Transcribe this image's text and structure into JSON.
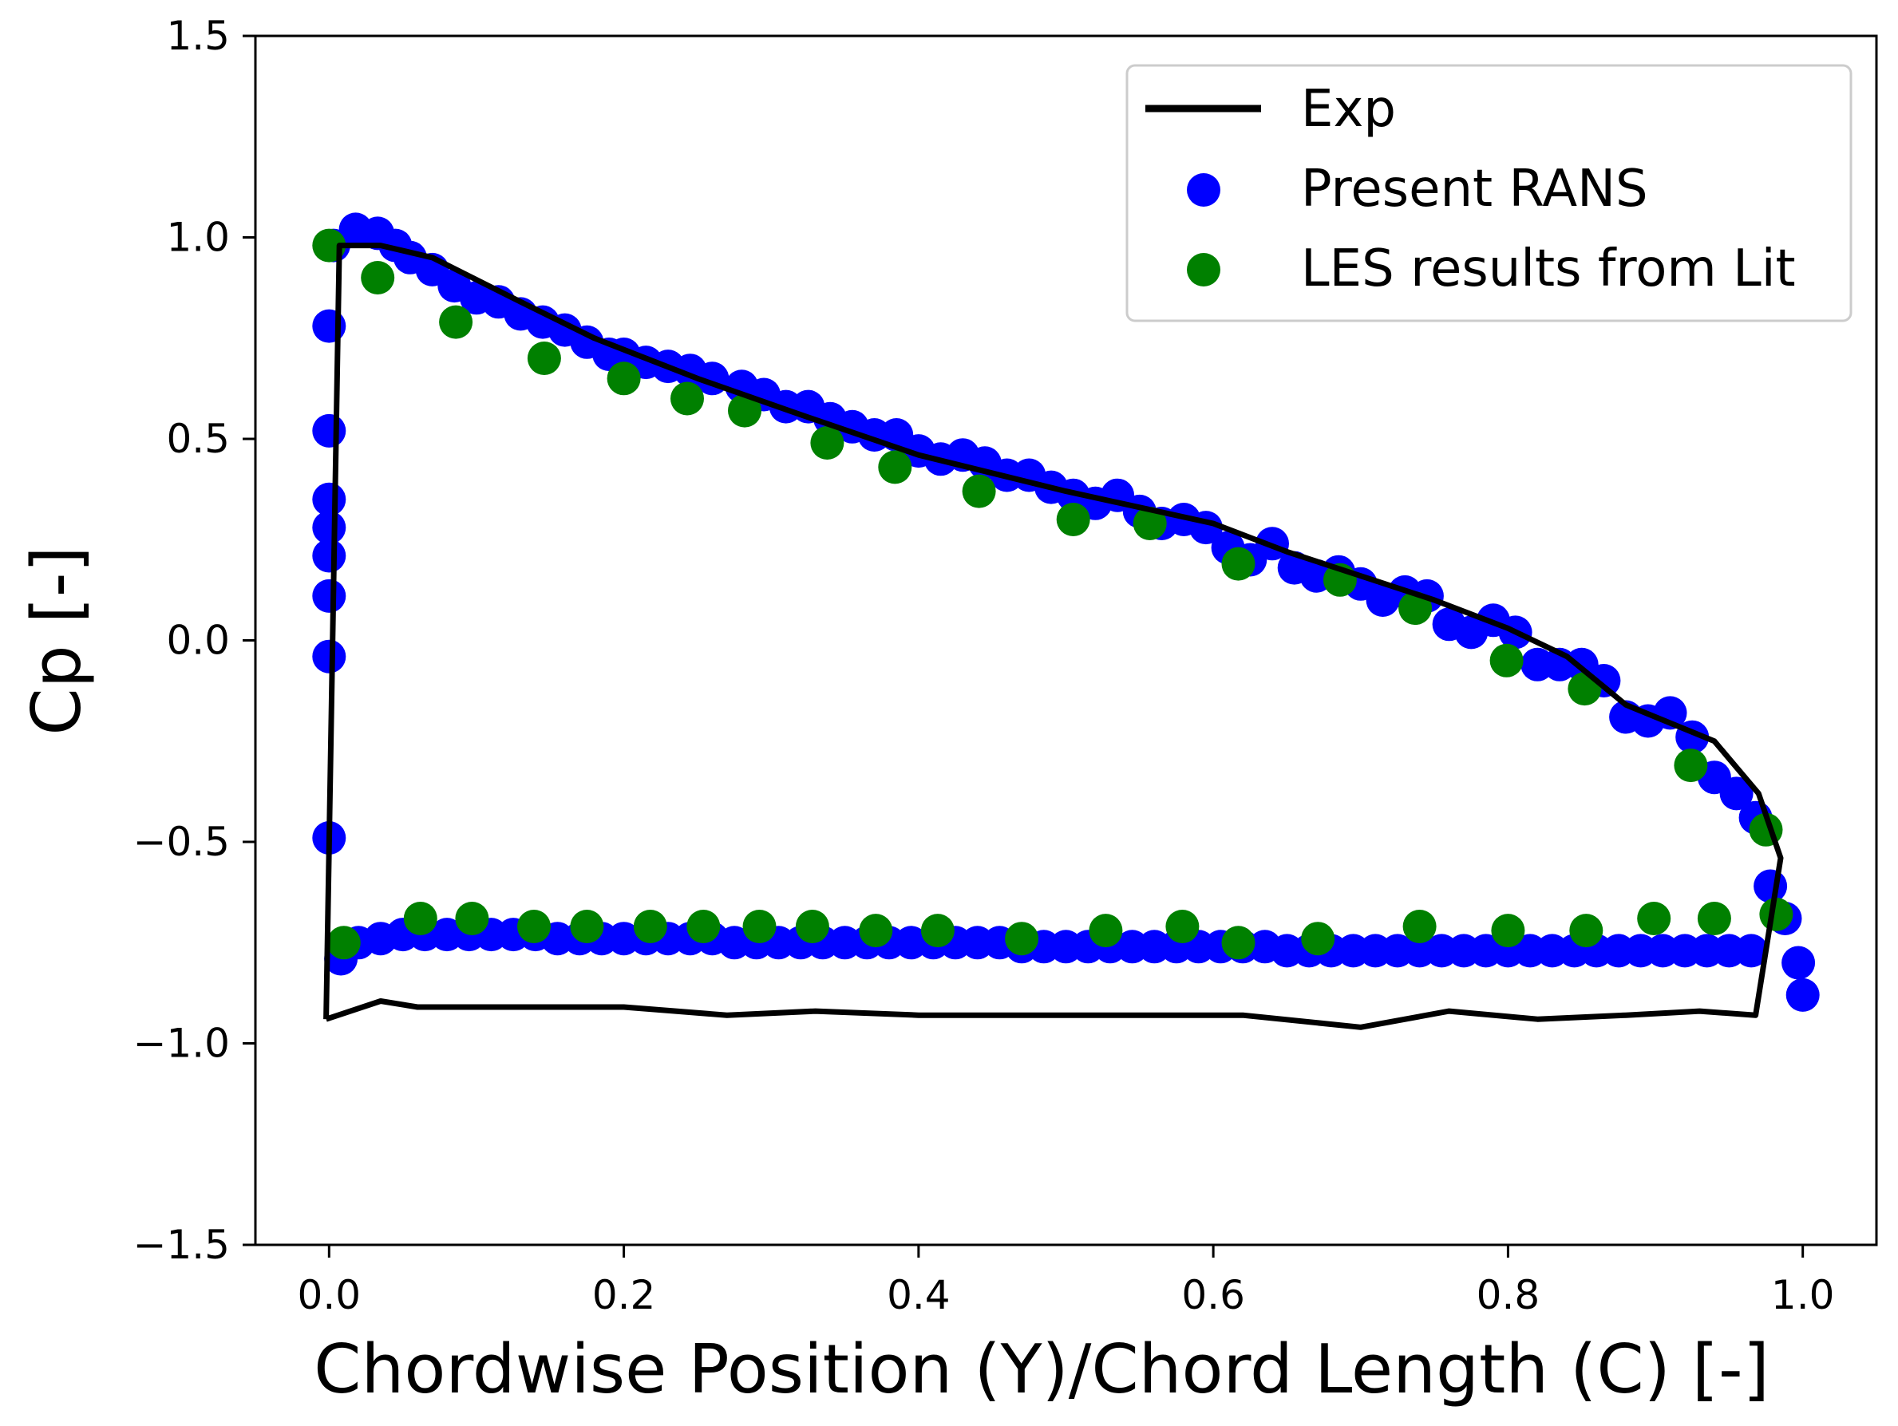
{
  "chart_data": {
    "type": "line+scatter",
    "title": "",
    "xlabel": "Chordwise Position (Y)/Chord Length (C) [-]",
    "ylabel": "Cp [-]",
    "xlim": [
      -0.05,
      1.05
    ],
    "ylim": [
      -1.5,
      1.5
    ],
    "xticks": [
      0.0,
      0.2,
      0.4,
      0.6,
      0.8,
      1.0
    ],
    "xtick_labels": [
      "0.0",
      "0.2",
      "0.4",
      "0.6",
      "0.8",
      "1.0"
    ],
    "yticks": [
      -1.5,
      -1.0,
      -0.5,
      0.0,
      0.5,
      1.0,
      1.5
    ],
    "ytick_labels": [
      "−1.5",
      "−1.0",
      "−0.5",
      "0.0",
      "0.5",
      "1.0",
      "1.5"
    ],
    "grid": false,
    "legend_position": "top-right",
    "legend": [
      {
        "label": "Exp",
        "kind": "line",
        "color": "#000000"
      },
      {
        "label": "Present RANS",
        "kind": "marker",
        "color": "#0000ff"
      },
      {
        "label": "LES results from Lit",
        "kind": "marker",
        "color": "#008000"
      }
    ],
    "series": [
      {
        "name": "Exp",
        "kind": "line",
        "color": "#000000",
        "x": [
          -0.002,
          0.007,
          0.035,
          0.07,
          0.13,
          0.18,
          0.25,
          0.32,
          0.4,
          0.5,
          0.6,
          0.65,
          0.7,
          0.75,
          0.8,
          0.84,
          0.88,
          0.94,
          0.97,
          0.985,
          0.968,
          0.93,
          0.88,
          0.82,
          0.76,
          0.7,
          0.62,
          0.55,
          0.47,
          0.4,
          0.33,
          0.27,
          0.2,
          0.1,
          0.06,
          0.035,
          -0.002
        ],
        "y": [
          -0.94,
          0.98,
          0.98,
          0.95,
          0.84,
          0.75,
          0.65,
          0.56,
          0.46,
          0.37,
          0.29,
          0.22,
          0.16,
          0.1,
          0.03,
          -0.04,
          -0.16,
          -0.25,
          -0.38,
          -0.54,
          -0.93,
          -0.92,
          -0.93,
          -0.94,
          -0.92,
          -0.96,
          -0.93,
          -0.93,
          -0.93,
          -0.93,
          -0.92,
          -0.93,
          -0.91,
          -0.91,
          -0.91,
          -0.895,
          -0.94
        ]
      },
      {
        "name": "Present RANS",
        "kind": "scatter",
        "color": "#0000ff",
        "x": [
          0.0,
          0.0,
          0.0,
          0.0,
          0.0,
          0.0,
          0.0,
          0.0,
          0.003,
          0.018,
          0.033,
          0.045,
          0.055,
          0.07,
          0.085,
          0.1,
          0.115,
          0.13,
          0.145,
          0.16,
          0.175,
          0.19,
          0.2,
          0.215,
          0.23,
          0.245,
          0.26,
          0.28,
          0.295,
          0.31,
          0.325,
          0.34,
          0.355,
          0.37,
          0.385,
          0.4,
          0.415,
          0.43,
          0.445,
          0.46,
          0.475,
          0.49,
          0.505,
          0.52,
          0.535,
          0.55,
          0.565,
          0.58,
          0.595,
          0.61,
          0.625,
          0.64,
          0.655,
          0.67,
          0.685,
          0.7,
          0.715,
          0.73,
          0.745,
          0.76,
          0.775,
          0.79,
          0.805,
          0.82,
          0.835,
          0.85,
          0.865,
          0.88,
          0.895,
          0.91,
          0.925,
          0.94,
          0.955,
          0.968,
          0.978,
          0.988,
          0.997,
          1.0,
          0.008,
          0.02,
          0.035,
          0.05,
          0.065,
          0.08,
          0.095,
          0.11,
          0.125,
          0.14,
          0.155,
          0.17,
          0.185,
          0.2,
          0.215,
          0.23,
          0.245,
          0.26,
          0.275,
          0.29,
          0.305,
          0.32,
          0.335,
          0.35,
          0.365,
          0.38,
          0.395,
          0.41,
          0.425,
          0.44,
          0.455,
          0.47,
          0.485,
          0.5,
          0.515,
          0.53,
          0.545,
          0.56,
          0.575,
          0.59,
          0.605,
          0.62,
          0.635,
          0.65,
          0.665,
          0.68,
          0.695,
          0.71,
          0.725,
          0.74,
          0.755,
          0.77,
          0.785,
          0.8,
          0.815,
          0.83,
          0.845,
          0.86,
          0.875,
          0.89,
          0.905,
          0.92,
          0.935,
          0.95,
          0.965
        ],
        "y": [
          -0.49,
          -0.04,
          0.11,
          0.21,
          0.28,
          0.35,
          0.52,
          0.78,
          0.98,
          1.02,
          1.01,
          0.98,
          0.95,
          0.92,
          0.88,
          0.85,
          0.84,
          0.81,
          0.79,
          0.77,
          0.74,
          0.71,
          0.71,
          0.69,
          0.68,
          0.67,
          0.65,
          0.63,
          0.61,
          0.58,
          0.58,
          0.55,
          0.53,
          0.51,
          0.51,
          0.47,
          0.45,
          0.46,
          0.44,
          0.41,
          0.41,
          0.38,
          0.36,
          0.34,
          0.36,
          0.32,
          0.29,
          0.3,
          0.28,
          0.23,
          0.2,
          0.24,
          0.18,
          0.16,
          0.17,
          0.14,
          0.1,
          0.12,
          0.11,
          0.04,
          0.02,
          0.05,
          0.02,
          -0.06,
          -0.06,
          -0.06,
          -0.1,
          -0.19,
          -0.2,
          -0.18,
          -0.24,
          -0.34,
          -0.38,
          -0.44,
          -0.61,
          -0.69,
          -0.8,
          -0.88,
          -0.79,
          -0.75,
          -0.74,
          -0.73,
          -0.73,
          -0.73,
          -0.73,
          -0.73,
          -0.73,
          -0.73,
          -0.74,
          -0.74,
          -0.74,
          -0.74,
          -0.74,
          -0.74,
          -0.74,
          -0.74,
          -0.75,
          -0.75,
          -0.75,
          -0.75,
          -0.75,
          -0.75,
          -0.75,
          -0.75,
          -0.75,
          -0.75,
          -0.75,
          -0.75,
          -0.75,
          -0.76,
          -0.76,
          -0.76,
          -0.76,
          -0.76,
          -0.76,
          -0.76,
          -0.76,
          -0.76,
          -0.76,
          -0.76,
          -0.76,
          -0.77,
          -0.77,
          -0.77,
          -0.77,
          -0.77,
          -0.77,
          -0.77,
          -0.77,
          -0.77,
          -0.77,
          -0.77,
          -0.77,
          -0.77,
          -0.77,
          -0.77,
          -0.77,
          -0.77,
          -0.77,
          -0.77,
          -0.77,
          -0.77,
          -0.77
        ]
      },
      {
        "name": "LES results from Lit",
        "kind": "scatter",
        "color": "#008000",
        "x": [
          0.0,
          0.033,
          0.086,
          0.146,
          0.2,
          0.243,
          0.282,
          0.338,
          0.384,
          0.441,
          0.505,
          0.557,
          0.617,
          0.686,
          0.737,
          0.799,
          0.852,
          0.924,
          0.975,
          0.01,
          0.062,
          0.097,
          0.139,
          0.175,
          0.218,
          0.254,
          0.292,
          0.328,
          0.371,
          0.413,
          0.47,
          0.527,
          0.579,
          0.617,
          0.671,
          0.74,
          0.8,
          0.853,
          0.899,
          0.94,
          0.982
        ],
        "y": [
          0.98,
          0.9,
          0.79,
          0.7,
          0.65,
          0.6,
          0.57,
          0.49,
          0.43,
          0.37,
          0.3,
          0.29,
          0.19,
          0.15,
          0.08,
          -0.05,
          -0.12,
          -0.31,
          -0.47,
          -0.75,
          -0.69,
          -0.69,
          -0.71,
          -0.71,
          -0.71,
          -0.71,
          -0.71,
          -0.71,
          -0.72,
          -0.72,
          -0.74,
          -0.72,
          -0.71,
          -0.75,
          -0.74,
          -0.71,
          -0.72,
          -0.72,
          -0.69,
          -0.69,
          -0.68
        ]
      }
    ]
  }
}
